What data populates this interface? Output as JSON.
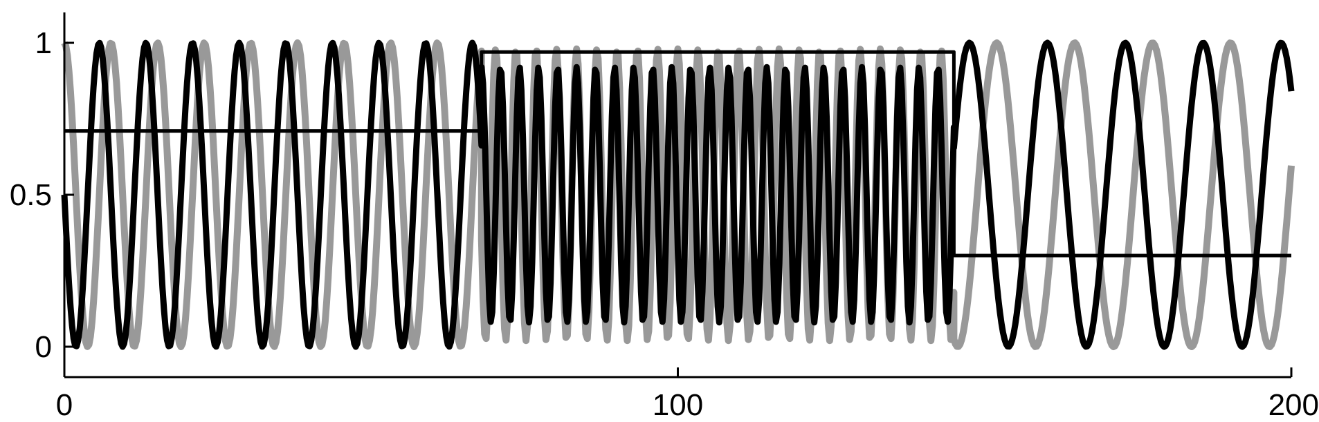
{
  "chart_data": {
    "type": "line",
    "title": "",
    "xlabel": "",
    "ylabel": "",
    "xlim": [
      0,
      200
    ],
    "ylim": [
      0,
      1
    ],
    "x_ticks": [
      {
        "value": 0,
        "label": "0"
      },
      {
        "value": 100,
        "label": "100"
      },
      {
        "value": 200,
        "label": "200"
      }
    ],
    "y_ticks": [
      {
        "value": 0,
        "label": "0"
      },
      {
        "value": 0.5,
        "label": "0.5"
      },
      {
        "value": 1,
        "label": "1"
      }
    ],
    "grid": false,
    "legend": "none",
    "series": [
      {
        "color": "#000000",
        "segments": [
          {
            "x_start": 0,
            "x_end": 68,
            "period": 7.6,
            "amplitude": 0.5,
            "baseline": 0.5,
            "phase": 0.25
          },
          {
            "x_start": 68,
            "x_end": 145,
            "period": 3.1,
            "amplitude": 0.42,
            "baseline": 0.5,
            "phase": 0.0
          },
          {
            "x_start": 145,
            "x_end": 200,
            "period": 12.7,
            "amplitude": 0.5,
            "baseline": 0.5,
            "phase": 0.8
          }
        ]
      },
      {
        "color": "#999999",
        "segments": [
          {
            "x_start": 0,
            "x_end": 68,
            "period": 7.6,
            "amplitude": 0.5,
            "baseline": 0.5,
            "phase": 0.0
          },
          {
            "x_start": 68,
            "x_end": 145,
            "period": 3.3,
            "amplitude": 0.48,
            "baseline": 0.5,
            "phase": 0.3
          },
          {
            "x_start": 145,
            "x_end": 200,
            "period": 12.7,
            "amplitude": 0.5,
            "baseline": 0.5,
            "phase": 0.45
          }
        ]
      },
      {
        "color": "#000000",
        "type": "step",
        "x": [
          0,
          68,
          68,
          145,
          145,
          200
        ],
        "y": [
          0.71,
          0.71,
          0.97,
          0.97,
          0.3,
          0.3
        ]
      }
    ]
  }
}
